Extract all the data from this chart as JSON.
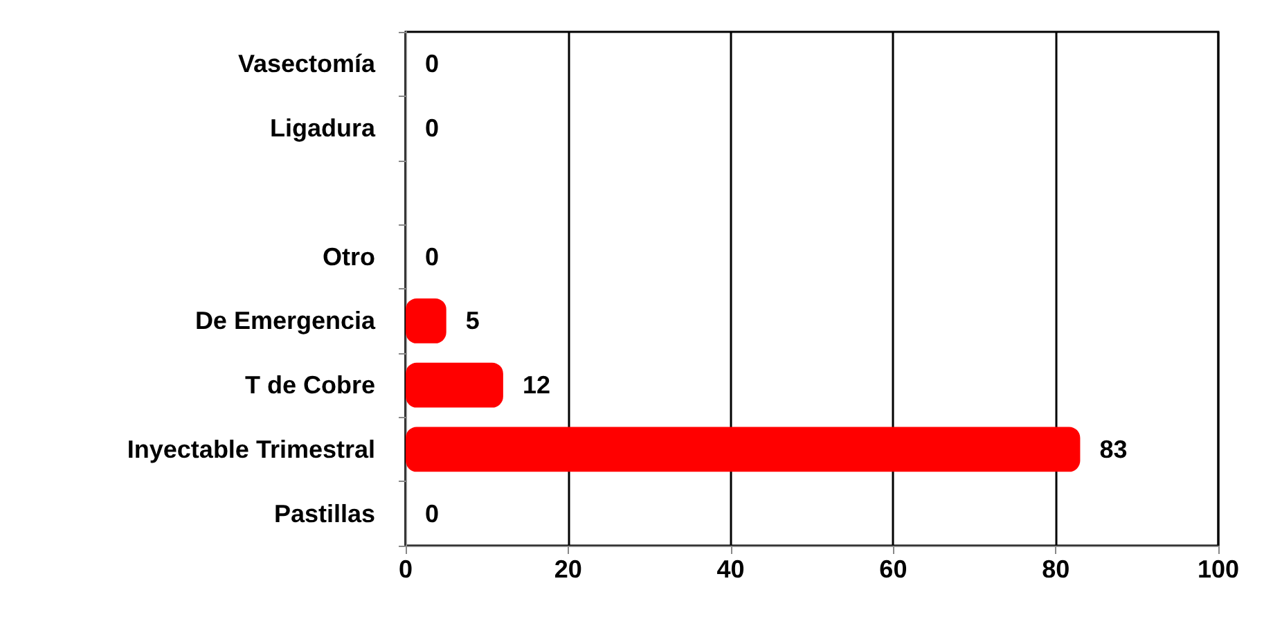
{
  "chart_data": {
    "type": "bar",
    "orientation": "horizontal",
    "categories": [
      "Vasectomía",
      "Ligadura",
      null,
      "Otro",
      "De Emergencia",
      "T de Cobre",
      "Inyectable Trimestral",
      "Pastillas"
    ],
    "values": [
      0,
      0,
      null,
      0,
      5,
      12,
      83,
      0
    ],
    "colors": [
      "#3b5f8c",
      "#3b5f8c",
      "#ff0000",
      "#ff0000",
      "#ff0000",
      "#ff0000",
      "#ff0000",
      "#ff0000"
    ],
    "xlim": [
      0,
      100
    ],
    "xticks": [
      0,
      20,
      40,
      60,
      80,
      100
    ],
    "grid": "x",
    "data_labels": true
  }
}
